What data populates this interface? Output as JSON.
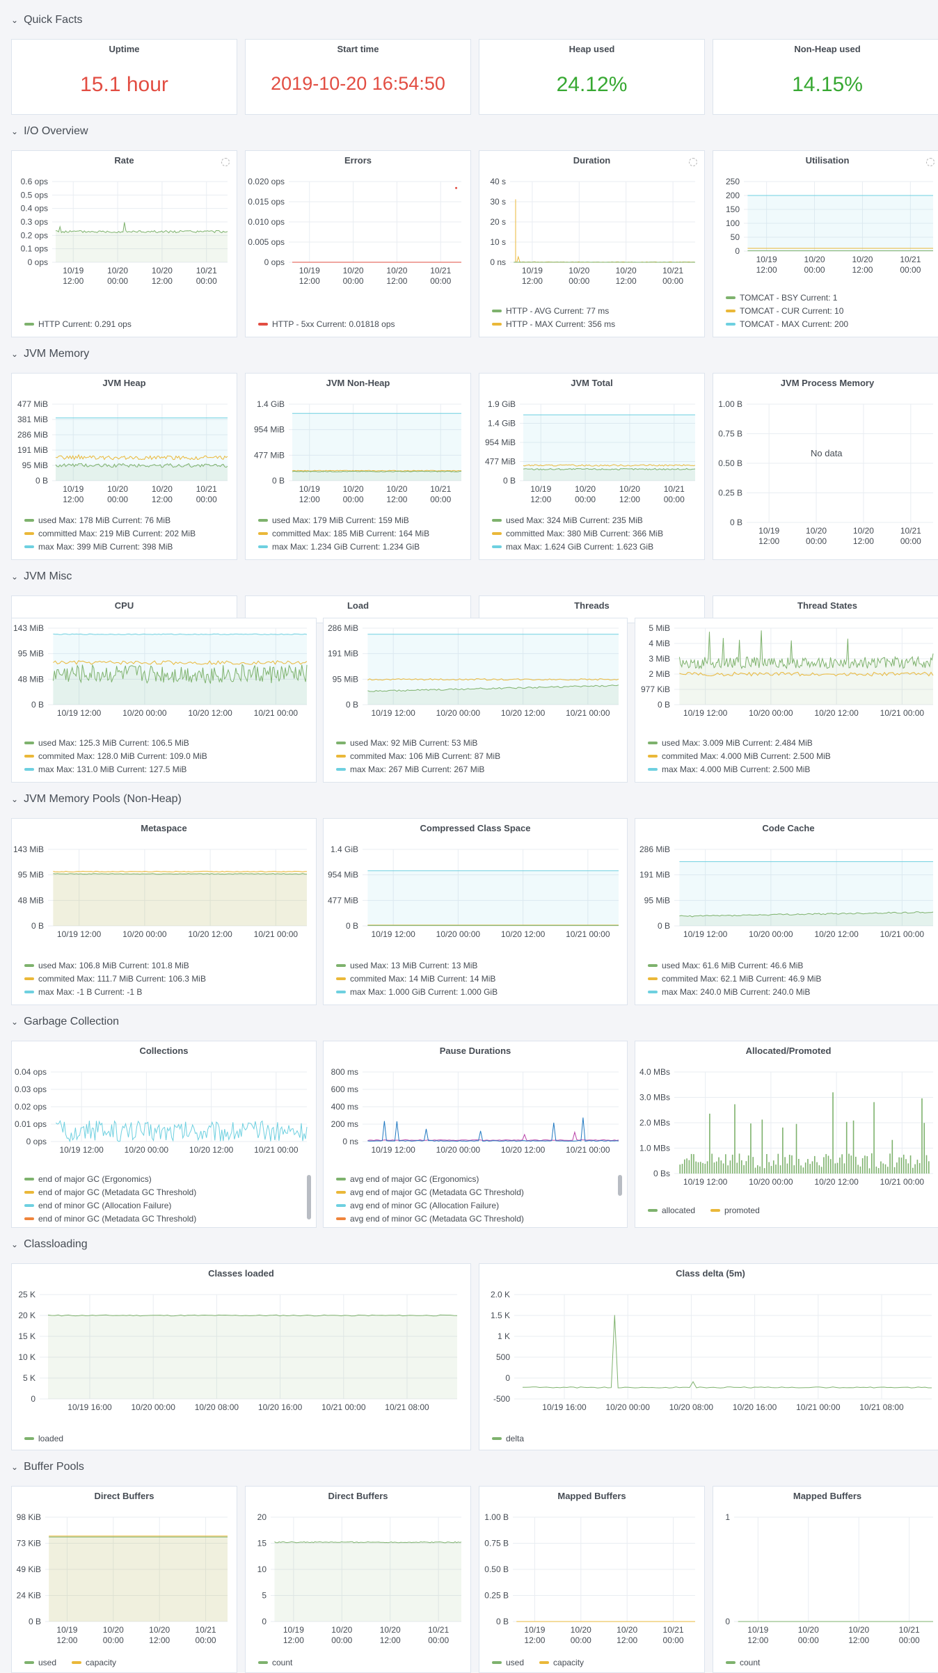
{
  "colors": {
    "green": "#7eb26d",
    "yellow": "#eab839",
    "cyan": "#6ed0e0",
    "red": "#e24d42",
    "orange": "#ef843c",
    "blue": "#1f78c1",
    "purple": "#ba43a9",
    "stat_red": "#e24d42",
    "stat_green": "#37a832"
  },
  "sections": {
    "quick_facts": "Quick Facts",
    "io_overview": "I/O Overview",
    "jvm_memory": "JVM Memory",
    "jvm_misc": "JVM Misc",
    "jvm_pools": "JVM Memory Pools (Non-Heap)",
    "gc": "Garbage Collection",
    "classloading": "Classloading",
    "buffer_pools": "Buffer Pools"
  },
  "stats": [
    {
      "title": "Uptime",
      "value": "15.1 hour",
      "color": "red"
    },
    {
      "title": "Start time",
      "value": "2019-10-20 16:54:50",
      "color": "red"
    },
    {
      "title": "Heap used",
      "value": "24.12%",
      "color": "green"
    },
    {
      "title": "Non-Heap used",
      "value": "14.15%",
      "color": "green"
    }
  ],
  "panels": {
    "rate": {
      "title": "Rate",
      "legend": [
        {
          "text": "HTTP  Current: 0.291 ops",
          "color": "green"
        }
      ]
    },
    "errors": {
      "title": "Errors",
      "legend": [
        {
          "text": "HTTP - 5xx  Current: 0.01818 ops",
          "color": "red"
        }
      ]
    },
    "duration": {
      "title": "Duration",
      "legend": [
        {
          "text": "HTTP - AVG  Current: 77 ms",
          "color": "green"
        },
        {
          "text": "HTTP - MAX  Current: 356 ms",
          "color": "yellow"
        }
      ]
    },
    "utilisation": {
      "title": "Utilisation",
      "legend": [
        {
          "text": "TOMCAT - BSY  Current: 1",
          "color": "green"
        },
        {
          "text": "TOMCAT - CUR  Current: 10",
          "color": "yellow"
        },
        {
          "text": "TOMCAT - MAX  Current: 200",
          "color": "cyan"
        }
      ]
    },
    "jvm_heap": {
      "title": "JVM Heap",
      "legend": [
        {
          "text": "used  Max: 178 MiB  Current: 76 MiB",
          "color": "green"
        },
        {
          "text": "committed  Max: 219 MiB  Current: 202 MiB",
          "color": "yellow"
        },
        {
          "text": "max  Max: 399 MiB  Current: 398 MiB",
          "color": "cyan"
        }
      ]
    },
    "jvm_nonheap": {
      "title": "JVM Non-Heap",
      "legend": [
        {
          "text": "used  Max: 179 MiB  Current: 159 MiB",
          "color": "green"
        },
        {
          "text": "committed  Max: 185 MiB  Current: 164 MiB",
          "color": "yellow"
        },
        {
          "text": "max  Max: 1.234 GiB  Current: 1.234 GiB",
          "color": "cyan"
        }
      ]
    },
    "jvm_total": {
      "title": "JVM Total",
      "legend": [
        {
          "text": "used  Max: 324 MiB  Current: 235 MiB",
          "color": "green"
        },
        {
          "text": "committed  Max: 380 MiB  Current: 366 MiB",
          "color": "yellow"
        },
        {
          "text": "max  Max: 1.624 GiB  Current: 1.623 GiB",
          "color": "cyan"
        }
      ]
    },
    "jvm_process": {
      "title": "JVM Process Memory",
      "nodata": "No data"
    },
    "cpu": {
      "title": "CPU"
    },
    "load": {
      "title": "Load"
    },
    "threads": {
      "title": "Threads"
    },
    "thread_states": {
      "title": "Thread States"
    },
    "misc_a": {
      "legend": [
        {
          "text": "used  Max: 125.3 MiB  Current: 106.5 MiB",
          "color": "green"
        },
        {
          "text": "commited  Max: 128.0 MiB  Current: 109.0 MiB",
          "color": "yellow"
        },
        {
          "text": "max  Max: 131.0 MiB  Current: 127.5 MiB",
          "color": "cyan"
        }
      ]
    },
    "misc_b": {
      "legend": [
        {
          "text": "used  Max: 92 MiB  Current: 53 MiB",
          "color": "green"
        },
        {
          "text": "commited  Max: 106 MiB  Current: 87 MiB",
          "color": "yellow"
        },
        {
          "text": "max  Max: 267 MiB  Current: 267 MiB",
          "color": "cyan"
        }
      ]
    },
    "misc_c": {
      "legend": [
        {
          "text": "used  Max: 3.009 MiB  Current: 2.484 MiB",
          "color": "green"
        },
        {
          "text": "commited  Max: 4.000 MiB  Current: 2.500 MiB",
          "color": "yellow"
        },
        {
          "text": "max  Max: 4.000 MiB  Current: 2.500 MiB",
          "color": "cyan"
        }
      ]
    },
    "metaspace": {
      "title": "Metaspace",
      "legend": [
        {
          "text": "used  Max: 106.8 MiB  Current: 101.8 MiB",
          "color": "green"
        },
        {
          "text": "commited  Max: 111.7 MiB  Current: 106.3 MiB",
          "color": "yellow"
        },
        {
          "text": "max  Max: -1 B  Current: -1 B",
          "color": "cyan"
        }
      ]
    },
    "ccs": {
      "title": "Compressed Class Space",
      "legend": [
        {
          "text": "used  Max: 13 MiB  Current: 13 MiB",
          "color": "green"
        },
        {
          "text": "commited  Max: 14 MiB  Current: 14 MiB",
          "color": "yellow"
        },
        {
          "text": "max  Max: 1.000 GiB  Current: 1.000 GiB",
          "color": "cyan"
        }
      ]
    },
    "codecache": {
      "title": "Code Cache",
      "legend": [
        {
          "text": "used  Max: 61.6 MiB  Current: 46.6 MiB",
          "color": "green"
        },
        {
          "text": "commited  Max: 62.1 MiB  Current: 46.9 MiB",
          "color": "yellow"
        },
        {
          "text": "max  Max: 240.0 MiB  Current: 240.0 MiB",
          "color": "cyan"
        }
      ]
    },
    "collections": {
      "title": "Collections",
      "legend": [
        {
          "text": "end of major GC (Ergonomics)",
          "color": "green"
        },
        {
          "text": "end of major GC (Metadata GC Threshold)",
          "color": "yellow"
        },
        {
          "text": "end of minor GC (Allocation Failure)",
          "color": "cyan"
        },
        {
          "text": "end of minor GC (Metadata GC Threshold)",
          "color": "orange"
        }
      ]
    },
    "pause": {
      "title": "Pause Durations",
      "legend": [
        {
          "text": "avg end of major GC (Ergonomics)",
          "color": "green"
        },
        {
          "text": "avg end of major GC (Metadata GC Threshold)",
          "color": "yellow"
        },
        {
          "text": "avg end of minor GC (Allocation Failure)",
          "color": "cyan"
        },
        {
          "text": "avg end of minor GC (Metadata GC Threshold)",
          "color": "orange"
        }
      ]
    },
    "alloc": {
      "title": "Allocated/Promoted",
      "legend": [
        {
          "text": "allocated",
          "color": "green"
        },
        {
          "text": "promoted",
          "color": "yellow"
        }
      ]
    },
    "classes_loaded": {
      "title": "Classes loaded",
      "legend": [
        {
          "text": "loaded",
          "color": "green"
        }
      ]
    },
    "class_delta": {
      "title": "Class delta (5m)",
      "legend": [
        {
          "text": "delta",
          "color": "green"
        }
      ]
    },
    "direct1": {
      "title": "Direct Buffers",
      "legend": [
        {
          "text": "used",
          "color": "green"
        },
        {
          "text": "capacity",
          "color": "yellow"
        }
      ]
    },
    "direct2": {
      "title": "Direct Buffers",
      "legend": [
        {
          "text": "count",
          "color": "green"
        }
      ]
    },
    "mapped1": {
      "title": "Mapped Buffers",
      "legend": [
        {
          "text": "used",
          "color": "green"
        },
        {
          "text": "capacity",
          "color": "yellow"
        }
      ]
    },
    "mapped2": {
      "title": "Mapped Buffers",
      "legend": [
        {
          "text": "count",
          "color": "green"
        }
      ]
    }
  },
  "chart_data": [
    {
      "id": "rate",
      "type": "line",
      "yticks": [
        "0.6 ops",
        "0.5 ops",
        "0.4 ops",
        "0.3 ops",
        "0.2 ops",
        "0.1 ops",
        "0 ops"
      ],
      "xticks": [
        "10/19\n12:00",
        "10/20\n00:00",
        "10/20\n12:00",
        "10/21\n00:00"
      ],
      "series": [
        {
          "name": "HTTP",
          "current": 0.291
        }
      ]
    },
    {
      "id": "errors",
      "type": "line",
      "yticks": [
        "0.020 ops",
        "0.015 ops",
        "0.010 ops",
        "0.005 ops",
        "0 ops"
      ],
      "xticks": [
        "10/19\n12:00",
        "10/20\n00:00",
        "10/20\n12:00",
        "10/21\n00:00"
      ],
      "series": [
        {
          "name": "HTTP - 5xx",
          "current": 0.01818
        }
      ]
    },
    {
      "id": "duration",
      "type": "line",
      "yticks": [
        "40 s",
        "30 s",
        "20 s",
        "10 s",
        "0 ns"
      ],
      "xticks": [
        "10/19\n12:00",
        "10/20\n00:00",
        "10/20\n12:00",
        "10/21\n00:00"
      ]
    },
    {
      "id": "utilisation",
      "type": "line",
      "yticks": [
        "250",
        "200",
        "150",
        "100",
        "50",
        "0"
      ],
      "xticks": [
        "10/19\n12:00",
        "10/20\n00:00",
        "10/20\n12:00",
        "10/21\n00:00"
      ]
    },
    {
      "id": "jvm_heap",
      "type": "area",
      "yticks": [
        "477 MiB",
        "381 MiB",
        "286 MiB",
        "191 MiB",
        "95 MiB",
        "0 B"
      ],
      "xticks": [
        "10/19\n12:00",
        "10/20\n00:00",
        "10/20\n12:00",
        "10/21\n00:00"
      ]
    },
    {
      "id": "jvm_nonheap",
      "type": "area",
      "yticks": [
        "1.4 GiB",
        "954 MiB",
        "477 MiB",
        "0 B"
      ],
      "xticks": [
        "10/19\n12:00",
        "10/20\n00:00",
        "10/20\n12:00",
        "10/21\n00:00"
      ]
    },
    {
      "id": "jvm_total",
      "type": "area",
      "yticks": [
        "1.9 GiB",
        "1.4 GiB",
        "954 MiB",
        "477 MiB",
        "0 B"
      ],
      "xticks": [
        "10/19\n12:00",
        "10/20\n00:00",
        "10/20\n12:00",
        "10/21\n00:00"
      ]
    },
    {
      "id": "jvm_process",
      "type": "line",
      "yticks": [
        "1.00 B",
        "0.75 B",
        "0.50 B",
        "0.25 B",
        "0 B"
      ],
      "xticks": [
        "10/19\n12:00",
        "10/20\n00:00",
        "10/20\n12:00",
        "10/21\n00:00"
      ]
    },
    {
      "id": "misc_a",
      "type": "area",
      "yticks": [
        "143 MiB",
        "95 MiB",
        "48 MiB",
        "0 B"
      ],
      "xticks": [
        "10/19 12:00",
        "10/20 00:00",
        "10/20 12:00",
        "10/21 00:00"
      ]
    },
    {
      "id": "misc_b",
      "type": "area",
      "yticks": [
        "286 MiB",
        "191 MiB",
        "95 MiB",
        "0 B"
      ],
      "xticks": [
        "10/19 12:00",
        "10/20 00:00",
        "10/20 12:00",
        "10/21 00:00"
      ]
    },
    {
      "id": "misc_c",
      "type": "area",
      "yticks": [
        "5 MiB",
        "4 MiB",
        "3 MiB",
        "2 MiB",
        "977 KiB",
        "0 B"
      ],
      "xticks": [
        "10/19 12:00",
        "10/20 00:00",
        "10/20 12:00",
        "10/21 00:00"
      ]
    },
    {
      "id": "metaspace",
      "type": "area",
      "yticks": [
        "143 MiB",
        "95 MiB",
        "48 MiB",
        "0 B"
      ],
      "xticks": [
        "10/19 12:00",
        "10/20 00:00",
        "10/20 12:00",
        "10/21 00:00"
      ]
    },
    {
      "id": "ccs",
      "type": "area",
      "yticks": [
        "1.4 GiB",
        "954 MiB",
        "477 MiB",
        "0 B"
      ],
      "xticks": [
        "10/19 12:00",
        "10/20 00:00",
        "10/20 12:00",
        "10/21 00:00"
      ]
    },
    {
      "id": "codecache",
      "type": "area",
      "yticks": [
        "286 MiB",
        "191 MiB",
        "95 MiB",
        "0 B"
      ],
      "xticks": [
        "10/19 12:00",
        "10/20 00:00",
        "10/20 12:00",
        "10/21 00:00"
      ]
    },
    {
      "id": "collections",
      "type": "line",
      "yticks": [
        "0.04 ops",
        "0.03 ops",
        "0.02 ops",
        "0.01 ops",
        "0 ops"
      ],
      "xticks": [
        "10/19 12:00",
        "10/20 00:00",
        "10/20 12:00",
        "10/21 00:00"
      ]
    },
    {
      "id": "pause",
      "type": "line",
      "yticks": [
        "800 ms",
        "600 ms",
        "400 ms",
        "200 ms",
        "0 ns"
      ],
      "xticks": [
        "10/19 12:00",
        "10/20 00:00",
        "10/20 12:00",
        "10/21 00:00"
      ]
    },
    {
      "id": "alloc",
      "type": "bar",
      "yticks": [
        "4.0 MBs",
        "3.0 MBs",
        "2.0 MBs",
        "1.0 MBs",
        "0 Bs"
      ],
      "xticks": [
        "10/19 12:00",
        "10/20 00:00",
        "10/20 12:00",
        "10/21 00:00"
      ]
    },
    {
      "id": "classes_loaded",
      "type": "area",
      "yticks": [
        "25 K",
        "20 K",
        "15 K",
        "10 K",
        "5 K",
        "0"
      ],
      "xticks": [
        "10/19 16:00",
        "10/20 00:00",
        "10/20 08:00",
        "10/20 16:00",
        "10/21 00:00",
        "10/21 08:00"
      ]
    },
    {
      "id": "class_delta",
      "type": "line",
      "yticks": [
        "2.0 K",
        "1.5 K",
        "1 K",
        "500",
        "0",
        "-500"
      ],
      "xticks": [
        "10/19 16:00",
        "10/20 00:00",
        "10/20 08:00",
        "10/20 16:00",
        "10/21 00:00",
        "10/21 08:00"
      ]
    },
    {
      "id": "direct1",
      "type": "area",
      "yticks": [
        "98 KiB",
        "73 KiB",
        "49 KiB",
        "24 KiB",
        "0 B"
      ],
      "xticks": [
        "10/19\n12:00",
        "10/20\n00:00",
        "10/20\n12:00",
        "10/21\n00:00"
      ]
    },
    {
      "id": "direct2",
      "type": "area",
      "yticks": [
        "20",
        "15",
        "10",
        "5",
        "0"
      ],
      "xticks": [
        "10/19\n12:00",
        "10/20\n00:00",
        "10/20\n12:00",
        "10/21\n00:00"
      ]
    },
    {
      "id": "mapped1",
      "type": "line",
      "yticks": [
        "1.00 B",
        "0.75 B",
        "0.50 B",
        "0.25 B",
        "0 B"
      ],
      "xticks": [
        "10/19\n12:00",
        "10/20\n00:00",
        "10/20\n12:00",
        "10/21\n00:00"
      ]
    },
    {
      "id": "mapped2",
      "type": "line",
      "yticks": [
        "1",
        "0"
      ],
      "xticks": [
        "10/19\n12:00",
        "10/20\n00:00",
        "10/20\n12:00",
        "10/21\n00:00"
      ]
    }
  ]
}
